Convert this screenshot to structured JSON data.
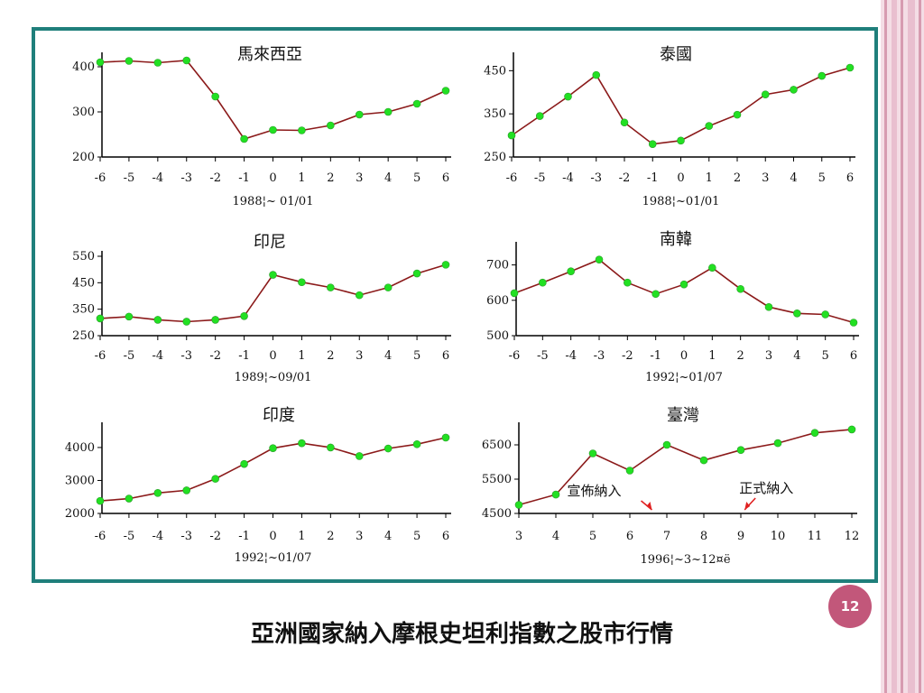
{
  "slide": {
    "caption": "亞洲國家納入摩根史坦利指數之股市行情",
    "page_number": "12",
    "accent_color": "#c2577a",
    "frame_color": "#1f7f7b",
    "line_color": "#8b1a1a",
    "point_color": "#22e022"
  },
  "chart_data": [
    {
      "type": "line",
      "title": "馬來西亞",
      "xlabel": "1988¦~ 01/01",
      "x": [
        -6,
        -5,
        -4,
        -3,
        -2,
        -1,
        0,
        1,
        2,
        3,
        4,
        5,
        6
      ],
      "values": [
        410,
        413,
        409,
        414,
        334,
        240,
        260,
        259,
        270,
        294,
        300,
        318,
        347
      ],
      "yticks": [
        200,
        300,
        400
      ],
      "ylim": [
        200,
        420
      ]
    },
    {
      "type": "line",
      "title": "泰國",
      "xlabel": "1988¦~01/01",
      "x": [
        -6,
        -5,
        -4,
        -3,
        -2,
        -1,
        0,
        1,
        2,
        3,
        4,
        5,
        6
      ],
      "values": [
        300,
        345,
        390,
        440,
        330,
        280,
        288,
        322,
        348,
        395,
        406,
        438,
        457
      ],
      "yticks": [
        250,
        350,
        450
      ],
      "ylim": [
        250,
        480
      ]
    },
    {
      "type": "line",
      "title": "印尼",
      "xlabel": "1989¦~09/01",
      "x": [
        -6,
        -5,
        -4,
        -3,
        -2,
        -1,
        0,
        1,
        2,
        3,
        4,
        5,
        6
      ],
      "values": [
        315,
        322,
        310,
        303,
        310,
        324,
        480,
        452,
        432,
        403,
        432,
        485,
        518
      ],
      "yticks": [
        250,
        350,
        450,
        550
      ],
      "ylim": [
        250,
        550
      ]
    },
    {
      "type": "line",
      "title": "南韓",
      "xlabel": "1992¦~01/07",
      "x": [
        -6,
        -5,
        -4,
        -3,
        -2,
        -1,
        0,
        1,
        2,
        3,
        4,
        5,
        6
      ],
      "values": [
        620,
        650,
        682,
        715,
        650,
        618,
        645,
        692,
        632,
        581,
        563,
        560,
        537
      ],
      "yticks": [
        500,
        600,
        700
      ],
      "ylim": [
        500,
        750
      ]
    },
    {
      "type": "line",
      "title": "印度",
      "xlabel": "1992¦~01/07",
      "x": [
        -6,
        -5,
        -4,
        -3,
        -2,
        -1,
        0,
        1,
        2,
        3,
        4,
        5,
        6
      ],
      "values": [
        2380,
        2450,
        2620,
        2700,
        3050,
        3500,
        3980,
        4130,
        4000,
        3740,
        3970,
        4100,
        4300
      ],
      "yticks": [
        2000,
        3000,
        4000
      ],
      "ylim": [
        2000,
        4600
      ]
    },
    {
      "type": "line",
      "title": "臺灣",
      "xlabel": "1996¦~3~12¤ë",
      "x": [
        3,
        4,
        5,
        6,
        7,
        8,
        9,
        10,
        11,
        12
      ],
      "values": [
        4750,
        5050,
        6250,
        5750,
        6500,
        6050,
        6350,
        6550,
        6850,
        6950
      ],
      "yticks": [
        4500,
        5500,
        6500
      ],
      "ylim": [
        4500,
        7000
      ],
      "annotations": [
        {
          "text": "宣佈納入",
          "x": 6.5
        },
        {
          "text": "正式納入",
          "x": 9.2
        }
      ]
    }
  ]
}
